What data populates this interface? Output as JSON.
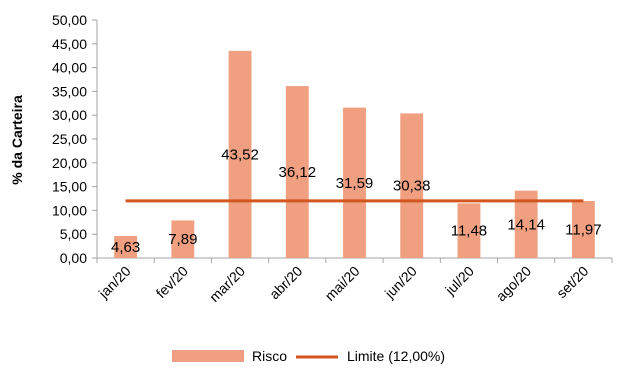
{
  "chart_data": {
    "type": "bar",
    "title": "",
    "xlabel": "",
    "ylabel": "% da Carteira",
    "categories": [
      "jan/20",
      "fev/20",
      "mar/20",
      "abr/20",
      "mai/20",
      "jun/20",
      "jul/20",
      "ago/20",
      "set/20"
    ],
    "series": [
      {
        "name": "Risco",
        "type": "bar",
        "color": "#F0A080",
        "values": [
          4.63,
          7.89,
          43.52,
          36.12,
          31.59,
          30.38,
          11.48,
          14.14,
          11.97
        ],
        "labels": [
          "4,63",
          "7,89",
          "43,52",
          "36,12",
          "31,59",
          "30,38",
          "11,48",
          "14,14",
          "11,97"
        ]
      },
      {
        "name": "Limite (12,00%)",
        "type": "line",
        "color": "#D2561E",
        "values": [
          12,
          12,
          12,
          12,
          12,
          12,
          12,
          12,
          12
        ]
      }
    ],
    "ylim": [
      0,
      50
    ],
    "yticks": [
      0,
      5,
      10,
      15,
      20,
      25,
      30,
      35,
      40,
      45,
      50
    ],
    "ytick_labels": [
      "0,00",
      "5,00",
      "10,00",
      "15,00",
      "20,00",
      "25,00",
      "30,00",
      "35,00",
      "40,00",
      "45,00",
      "50,00"
    ],
    "grid": false,
    "legend": "bottom"
  }
}
